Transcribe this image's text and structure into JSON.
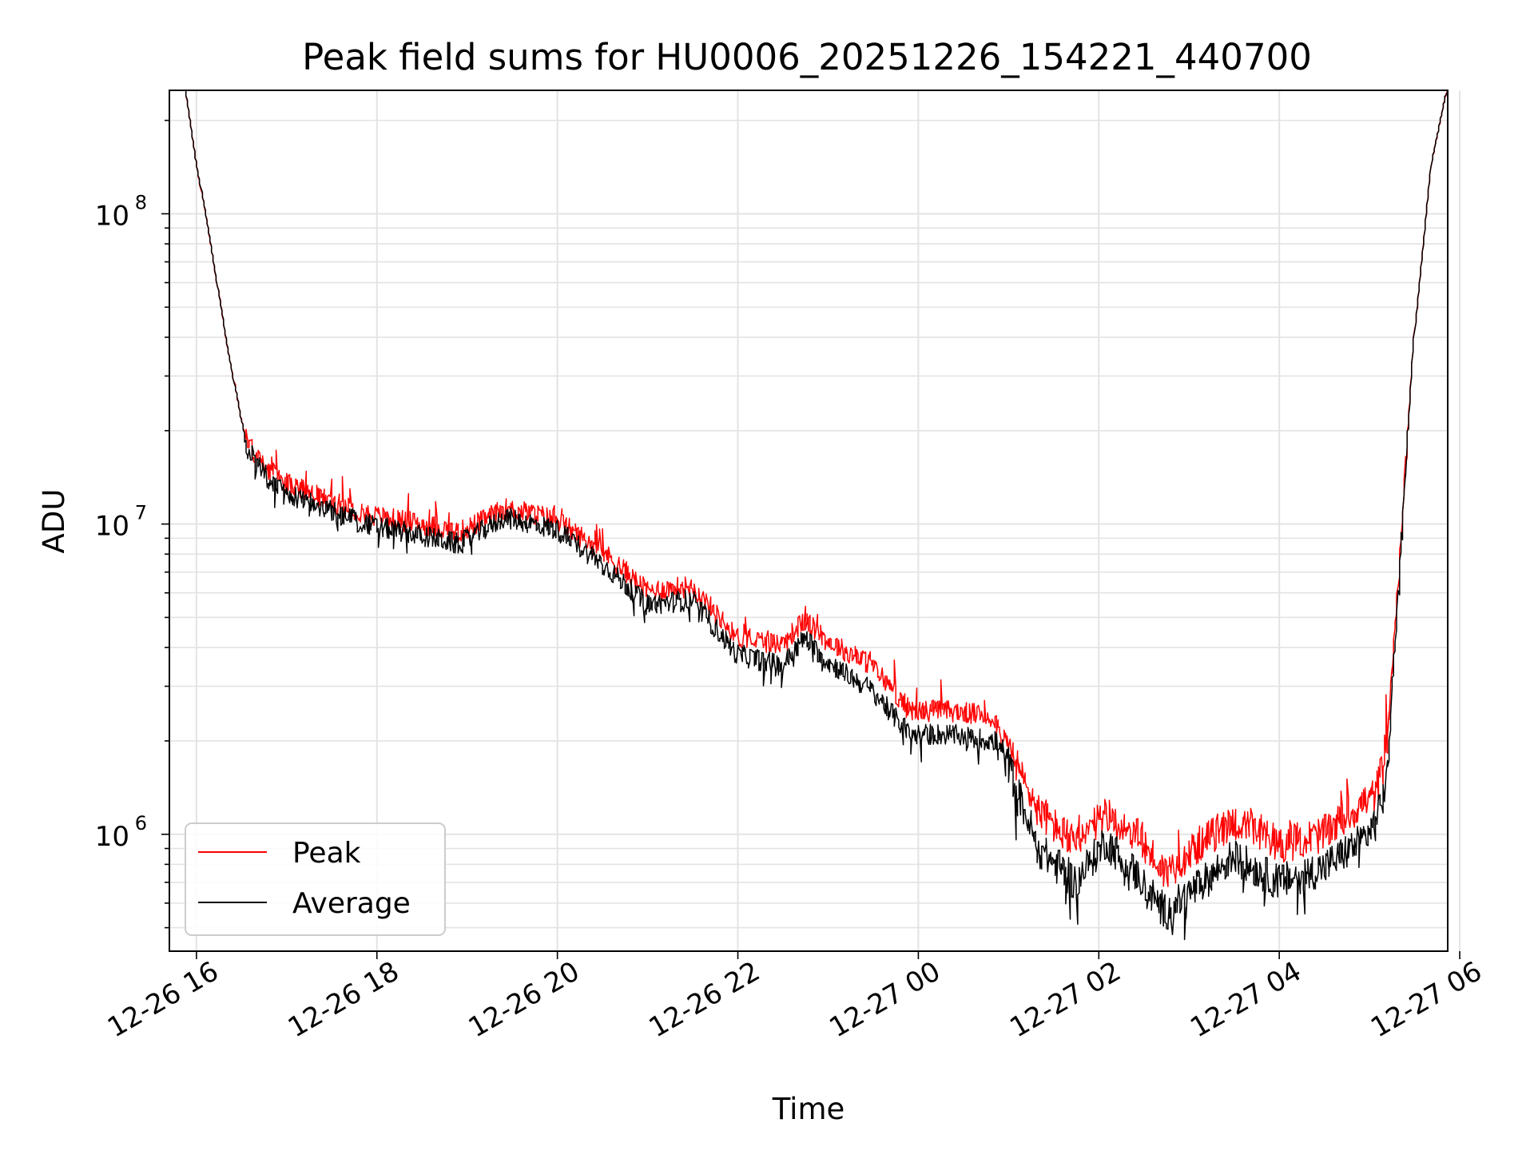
{
  "chart_data": {
    "type": "line",
    "title": "Peak field sums for HU0006_20251226_154221_440700",
    "xlabel": "Time",
    "ylabel": "ADU",
    "y_scale": "log",
    "xlim": [
      "2025-12-26 15:42",
      "2025-12-27 05:52"
    ],
    "ylim": [
      420000,
      250000000
    ],
    "grid": true,
    "legend_position": "lower-left",
    "x_tick_labels": [
      "12-26 16",
      "12-26 18",
      "12-26 20",
      "12-26 22",
      "12-27 00",
      "12-27 02",
      "12-27 04",
      "12-27 06"
    ],
    "x_tick_values": [
      "2025-12-26 16:00",
      "2025-12-26 18:00",
      "2025-12-26 20:00",
      "2025-12-26 22:00",
      "2025-12-27 00:00",
      "2025-12-27 02:00",
      "2025-12-27 04:00",
      "2025-12-27 06:00"
    ],
    "y_ticks": [
      {
        "value": 1000000,
        "base": "10",
        "exp": "6"
      },
      {
        "value": 10000000,
        "base": "10",
        "exp": "7"
      },
      {
        "value": 100000000,
        "base": "10",
        "exp": "8"
      }
    ],
    "x": [
      "2025-12-26 15:53",
      "2025-12-26 16:00",
      "2025-12-26 16:10",
      "2025-12-26 16:20",
      "2025-12-26 16:30",
      "2025-12-26 16:35",
      "2025-12-26 16:45",
      "2025-12-26 17:00",
      "2025-12-26 17:30",
      "2025-12-26 18:00",
      "2025-12-26 18:30",
      "2025-12-26 18:55",
      "2025-12-26 19:15",
      "2025-12-26 19:25",
      "2025-12-26 19:45",
      "2025-12-26 20:00",
      "2025-12-26 20:30",
      "2025-12-26 21:00",
      "2025-12-26 21:30",
      "2025-12-26 22:00",
      "2025-12-26 22:30",
      "2025-12-26 22:45",
      "2025-12-26 23:00",
      "2025-12-26 23:30",
      "2025-12-26 23:55",
      "2025-12-27 00:20",
      "2025-12-27 00:50",
      "2025-12-27 01:00",
      "2025-12-27 01:20",
      "2025-12-27 01:45",
      "2025-12-27 02:05",
      "2025-12-27 02:25",
      "2025-12-27 02:45",
      "2025-12-27 03:10",
      "2025-12-27 03:30",
      "2025-12-27 04:00",
      "2025-12-27 04:30",
      "2025-12-27 04:55",
      "2025-12-27 05:05",
      "2025-12-27 05:12",
      "2025-12-27 05:20",
      "2025-12-27 05:30",
      "2025-12-27 05:42",
      "2025-12-27 05:52"
    ],
    "series": [
      {
        "name": "Peak",
        "color": "#ff0000",
        "values": [
          250000000,
          150000000,
          80000000,
          40000000,
          22000000,
          18000000,
          15500000,
          13500000,
          11800000,
          10600000,
          10000000,
          9400000,
          10500000,
          11200000,
          10800000,
          10300000,
          8200000,
          6100000,
          6300000,
          4300000,
          4100000,
          4900000,
          4200000,
          3500000,
          2500000,
          2500000,
          2400000,
          1900000,
          1200000,
          920000,
          1150000,
          1000000,
          750000,
          950000,
          1100000,
          920000,
          1000000,
          1250000,
          1350000,
          1900000,
          7000000,
          40000000,
          150000000,
          250000000
        ]
      },
      {
        "name": "Average",
        "color": "#000000",
        "values": [
          250000000,
          150000000,
          80000000,
          40000000,
          22000000,
          17500000,
          14500000,
          12500000,
          11000000,
          9800000,
          9200000,
          8600000,
          9800000,
          10500000,
          10000000,
          9600000,
          7500000,
          5500000,
          5700000,
          3800000,
          3500000,
          4300000,
          3600000,
          2900000,
          2100000,
          2100000,
          2000000,
          1700000,
          900000,
          700000,
          950000,
          750000,
          560000,
          700000,
          850000,
          700000,
          780000,
          950000,
          1100000,
          1500000,
          6500000,
          40000000,
          150000000,
          250000000
        ]
      }
    ]
  }
}
